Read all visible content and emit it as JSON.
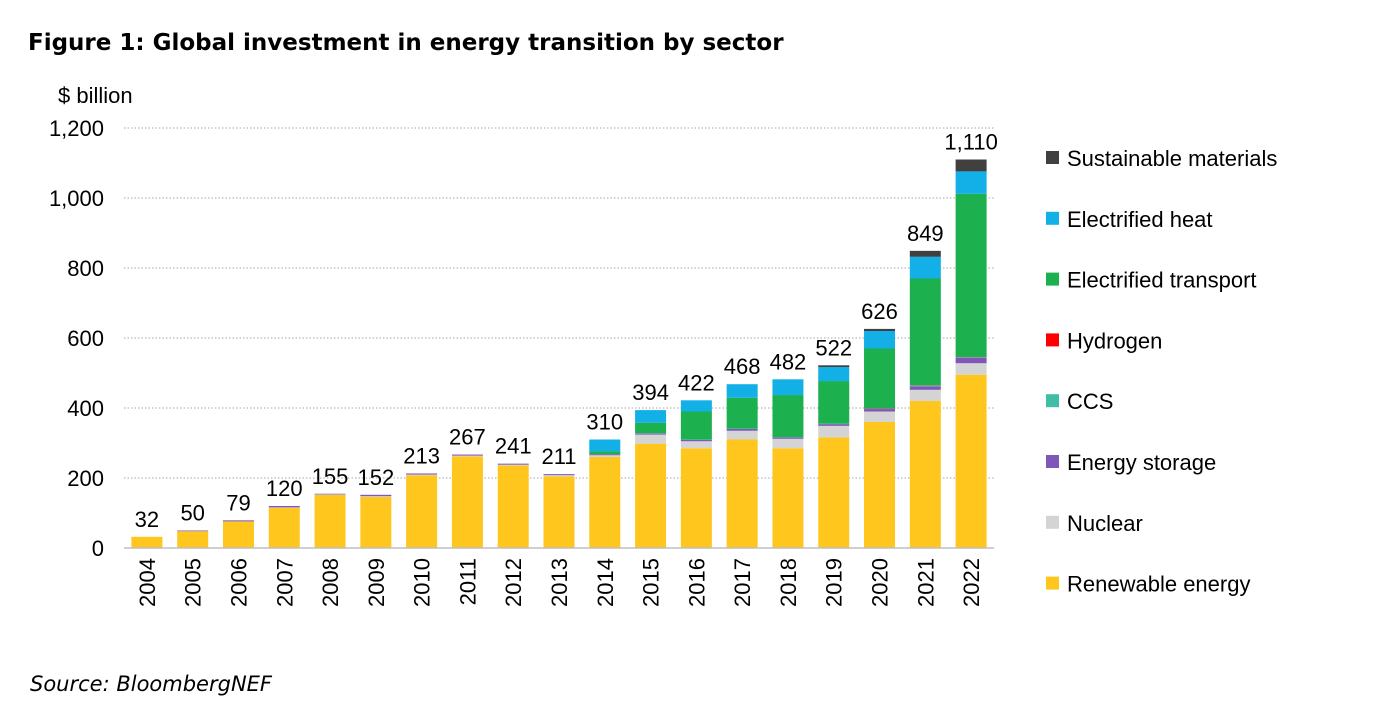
{
  "header": {
    "title": "Figure 1: Global investment in energy transition by sector"
  },
  "footer": {
    "source": "Source: BloombergNEF"
  },
  "chart_data": {
    "type": "bar",
    "stacked": true,
    "title": "Figure 1: Global investment in energy transition by sector",
    "ylabel": "$ billion",
    "xlabel": "",
    "ylim": [
      0,
      1200
    ],
    "yticks": [
      0,
      200,
      400,
      600,
      800,
      1000,
      1200
    ],
    "ytick_labels": [
      "0",
      "200",
      "400",
      "600",
      "800",
      "1,000",
      "1,200"
    ],
    "grid": "horizontal dotted",
    "legend_position": "right",
    "categories": [
      "2004",
      "2005",
      "2006",
      "2007",
      "2008",
      "2009",
      "2010",
      "2011",
      "2012",
      "2013",
      "2014",
      "2015",
      "2016",
      "2017",
      "2018",
      "2019",
      "2020",
      "2021",
      "2022"
    ],
    "totals": [
      32,
      50,
      79,
      120,
      155,
      152,
      213,
      267,
      241,
      211,
      310,
      394,
      422,
      468,
      482,
      522,
      626,
      849,
      1110
    ],
    "total_labels": [
      "32",
      "50",
      "79",
      "120",
      "155",
      "152",
      "213",
      "267",
      "241",
      "211",
      "310",
      "394",
      "422",
      "468",
      "482",
      "522",
      "626",
      "849",
      "1,110"
    ],
    "series": [
      {
        "name": "Renewable energy",
        "color": "#FFC61E",
        "values": [
          32,
          48,
          76,
          115,
          152,
          146,
          208,
          262,
          236,
          205,
          260,
          298,
          285,
          310,
          285,
          316,
          360,
          420,
          495
        ]
      },
      {
        "name": "Nuclear",
        "color": "#D4D4D4",
        "values": [
          0,
          0,
          0,
          1,
          1,
          2,
          2,
          2,
          2,
          3,
          5,
          26,
          20,
          25,
          27,
          33,
          30,
          32,
          33
        ]
      },
      {
        "name": "Energy storage",
        "color": "#7E57B8",
        "values": [
          0,
          2,
          3,
          4,
          2,
          4,
          3,
          3,
          3,
          3,
          3,
          3,
          4,
          5,
          4,
          5,
          7,
          10,
          15
        ]
      },
      {
        "name": "CCS",
        "color": "#3FBDA5",
        "values": [
          0,
          0,
          0,
          0,
          0,
          0,
          0,
          0,
          0,
          0,
          0,
          1,
          1,
          1,
          1,
          1,
          2,
          2,
          3
        ]
      },
      {
        "name": "Hydrogen",
        "color": "#FF0000",
        "values": [
          0,
          0,
          0,
          0,
          0,
          0,
          0,
          0,
          0,
          0,
          0,
          0,
          0,
          0,
          0,
          0,
          1,
          1,
          1
        ]
      },
      {
        "name": "Electrified transport",
        "color": "#1DB04F",
        "values": [
          0,
          0,
          0,
          0,
          0,
          0,
          0,
          0,
          0,
          0,
          8,
          30,
          80,
          88,
          120,
          122,
          170,
          305,
          465
        ]
      },
      {
        "name": "Electrified heat",
        "color": "#13B0E8",
        "values": [
          0,
          0,
          0,
          0,
          0,
          0,
          0,
          0,
          0,
          0,
          34,
          36,
          32,
          39,
          45,
          40,
          50,
          62,
          64
        ]
      },
      {
        "name": "Sustainable materials",
        "color": "#404040",
        "values": [
          0,
          0,
          0,
          0,
          0,
          0,
          0,
          0,
          0,
          0,
          0,
          0,
          0,
          0,
          0,
          5,
          6,
          17,
          34
        ]
      }
    ],
    "legend_order": [
      "Sustainable materials",
      "Electrified heat",
      "Electrified transport",
      "Hydrogen",
      "CCS",
      "Energy storage",
      "Nuclear",
      "Renewable energy"
    ]
  }
}
